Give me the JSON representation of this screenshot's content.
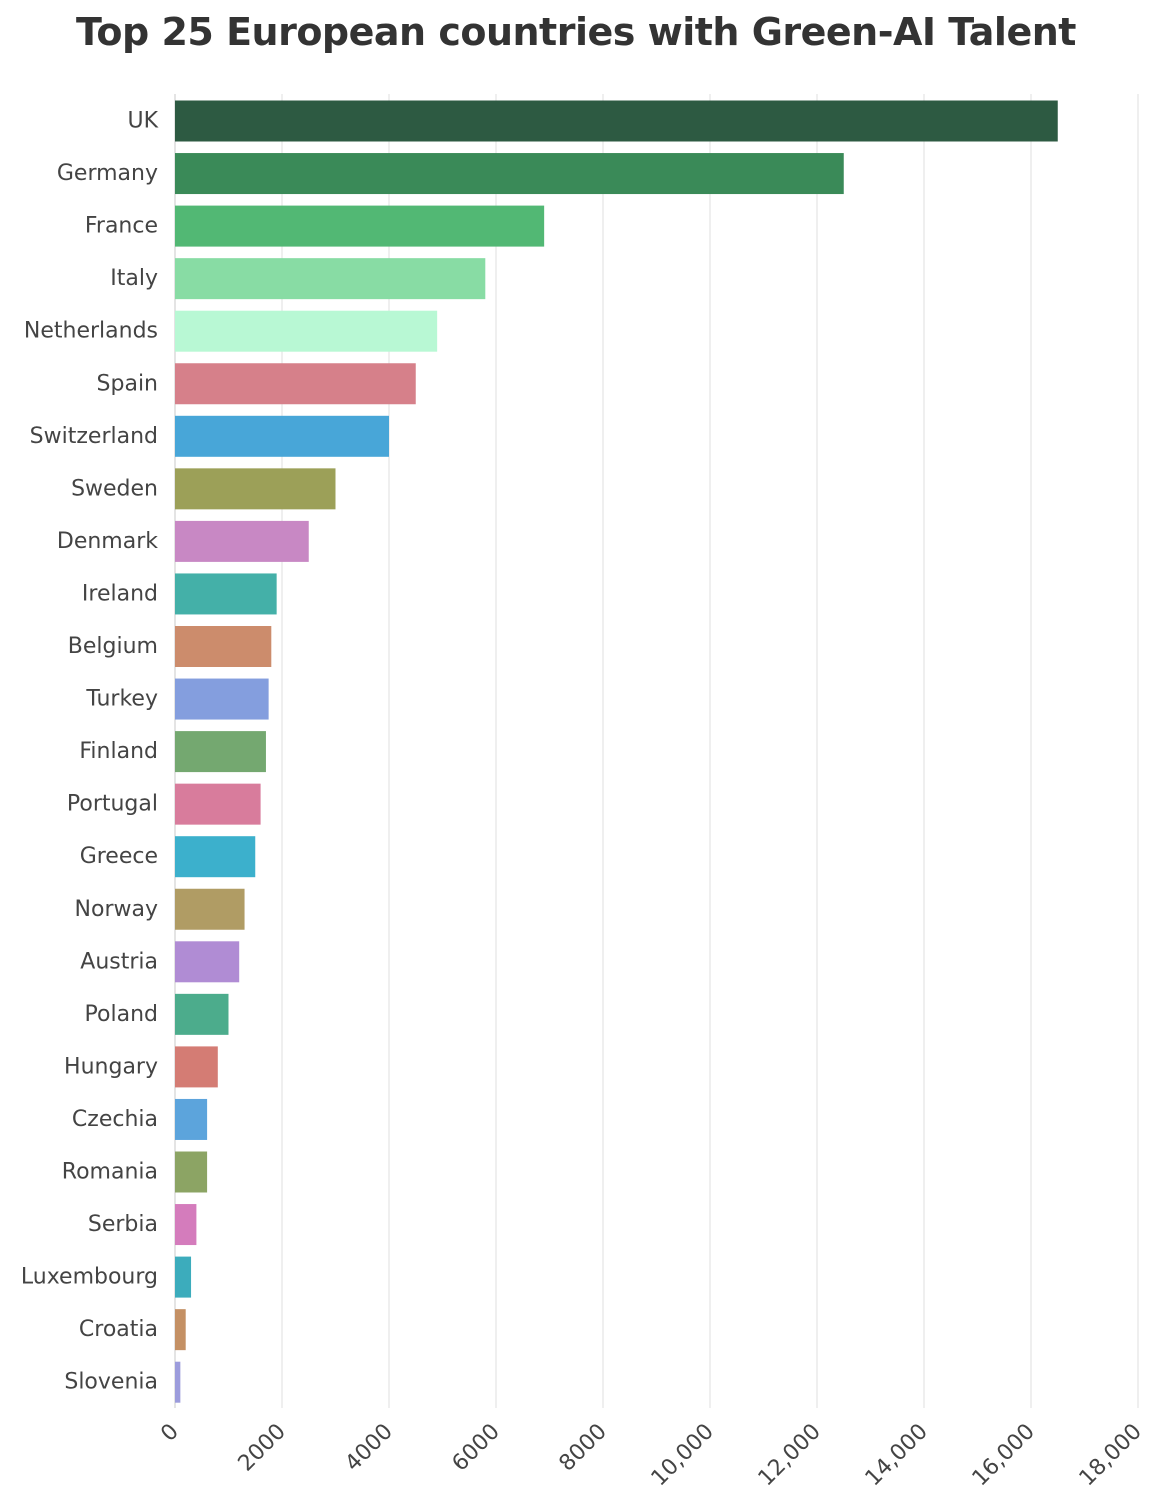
{
  "chart_data": {
    "type": "bar",
    "orientation": "horizontal",
    "title": "Top 25 European countries with Green-AI Talent",
    "xlabel": "",
    "ylabel": "",
    "xlim": [
      0,
      18000
    ],
    "x_ticks": [
      0,
      2000,
      4000,
      6000,
      8000,
      10000,
      12000,
      14000,
      16000,
      18000
    ],
    "x_tick_labels": [
      "0",
      "2000",
      "4000",
      "6000",
      "8000",
      "10,000",
      "12,000",
      "14,000",
      "16,000",
      "18,000"
    ],
    "grid": "vertical",
    "legend": "none",
    "categories": [
      "UK",
      "Germany",
      "France",
      "Italy",
      "Netherlands",
      "Spain",
      "Switzerland",
      "Sweden",
      "Denmark",
      "Ireland",
      "Belgium",
      "Turkey",
      "Finland",
      "Portugal",
      "Greece",
      "Norway",
      "Austria",
      "Poland",
      "Hungary",
      "Czechia",
      "Romania",
      "Serbia",
      "Luxembourg",
      "Croatia",
      "Slovenia"
    ],
    "values": [
      16500,
      12500,
      6900,
      5800,
      4900,
      4500,
      4000,
      3000,
      2500,
      1900,
      1800,
      1750,
      1700,
      1600,
      1500,
      1300,
      1200,
      1000,
      800,
      600,
      600,
      400,
      300,
      200,
      100
    ],
    "colors": [
      "#2d5a42",
      "#3a8a58",
      "#52b874",
      "#88dca4",
      "#b8f8d4",
      "#d6808a",
      "#48a6d8",
      "#9ca058",
      "#c888c4",
      "#44b0a8",
      "#cc8c6c",
      "#849ede",
      "#74a870",
      "#d87c9c",
      "#3cb0cc",
      "#b09c64",
      "#b08cd4",
      "#4cac8c",
      "#d47c74",
      "#5ca4dc",
      "#8ca464",
      "#d47cbc",
      "#3cacbc",
      "#c49064",
      "#9c9cdc"
    ]
  }
}
